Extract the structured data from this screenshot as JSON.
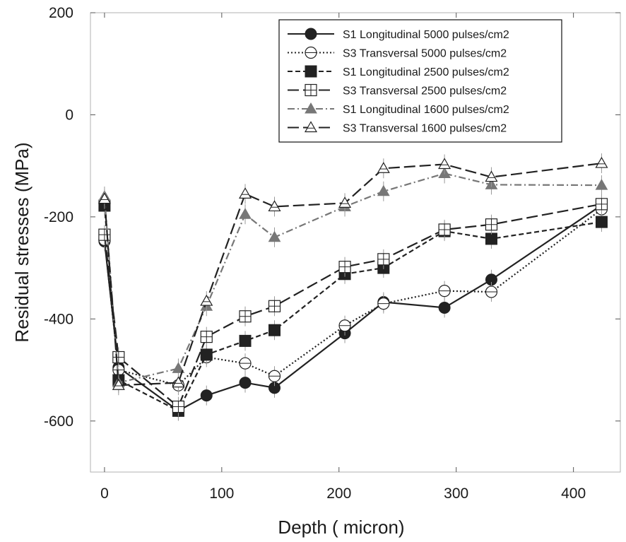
{
  "chart_data": {
    "type": "line",
    "xlabel": "Depth ( micron)",
    "ylabel": "Residual stresses (MPa)",
    "xlim": [
      -12,
      440
    ],
    "ylim": [
      -700,
      200
    ],
    "xticks": [
      0,
      100,
      200,
      300,
      400
    ],
    "yticks": [
      200,
      0,
      -200,
      -400,
      -600
    ],
    "grid": false,
    "legend_position": "top-right",
    "series": [
      {
        "name": "S1 Longitudinal 5000 pulses/cm2",
        "marker": "circle-filled",
        "dash": "solid",
        "color": "#222222",
        "points": [
          [
            0,
            -248
          ],
          [
            12,
            -495
          ],
          [
            63,
            -580
          ],
          [
            87,
            -550
          ],
          [
            120,
            -525
          ],
          [
            145,
            -535
          ],
          [
            205,
            -428
          ],
          [
            238,
            -367
          ],
          [
            290,
            -378
          ],
          [
            330,
            -323
          ],
          [
            424,
            -177
          ]
        ]
      },
      {
        "name": "S3 Transversal  5000 pulses/cm2",
        "marker": "circle-open",
        "dash": "dotted",
        "color": "#222222",
        "points": [
          [
            0,
            -245
          ],
          [
            12,
            -500
          ],
          [
            63,
            -530
          ],
          [
            87,
            -475
          ],
          [
            120,
            -487
          ],
          [
            145,
            -512
          ],
          [
            205,
            -413
          ],
          [
            238,
            -370
          ],
          [
            290,
            -345
          ],
          [
            330,
            -347
          ],
          [
            424,
            -185
          ]
        ]
      },
      {
        "name": "S1 Longitudinal 2500 pulses/cm2",
        "marker": "square-filled",
        "dash": "dashed",
        "color": "#222222",
        "points": [
          [
            0,
            -178
          ],
          [
            12,
            -520
          ],
          [
            63,
            -580
          ],
          [
            87,
            -470
          ],
          [
            120,
            -443
          ],
          [
            145,
            -422
          ],
          [
            205,
            -312
          ],
          [
            238,
            -300
          ],
          [
            290,
            -228
          ],
          [
            330,
            -243
          ],
          [
            424,
            -210
          ]
        ]
      },
      {
        "name": "S3 Transversal 2500 pulses/cm2",
        "marker": "square-open-cross",
        "dash": "long-dash",
        "color": "#222222",
        "points": [
          [
            0,
            -235
          ],
          [
            12,
            -475
          ],
          [
            63,
            -572
          ],
          [
            87,
            -435
          ],
          [
            120,
            -395
          ],
          [
            145,
            -375
          ],
          [
            205,
            -298
          ],
          [
            238,
            -283
          ],
          [
            290,
            -225
          ],
          [
            330,
            -215
          ],
          [
            424,
            -175
          ]
        ]
      },
      {
        "name": "S1 Longitudinal 1600 pulses/cm2",
        "marker": "triangle-filled",
        "dash": "dash-dot",
        "color": "#777777",
        "points": [
          [
            0,
            -160
          ],
          [
            12,
            -525
          ],
          [
            63,
            -497
          ],
          [
            87,
            -375
          ],
          [
            120,
            -195
          ],
          [
            145,
            -240
          ],
          [
            205,
            -180
          ],
          [
            238,
            -150
          ],
          [
            290,
            -115
          ],
          [
            330,
            -137
          ],
          [
            424,
            -138
          ]
        ]
      },
      {
        "name": "S3 Transversal 1600 pulses/cm2",
        "marker": "triangle-open",
        "dash": "long-dash",
        "color": "#222222",
        "points": [
          [
            0,
            -165
          ],
          [
            12,
            -530
          ],
          [
            63,
            -525
          ],
          [
            87,
            -365
          ],
          [
            120,
            -155
          ],
          [
            145,
            -180
          ],
          [
            205,
            -173
          ],
          [
            238,
            -105
          ],
          [
            290,
            -97
          ],
          [
            330,
            -122
          ],
          [
            424,
            -95
          ]
        ]
      }
    ]
  }
}
